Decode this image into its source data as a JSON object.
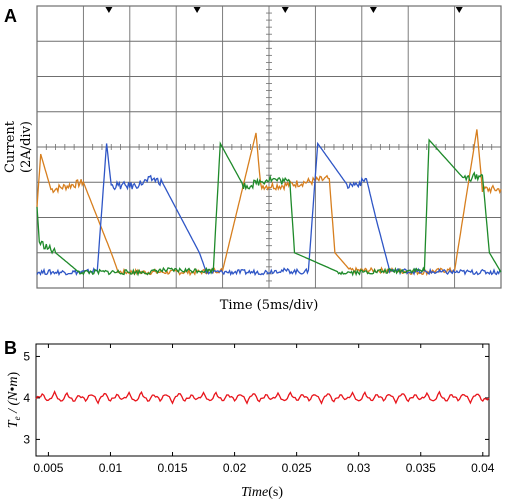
{
  "chart_data": [
    {
      "panel": "A",
      "type": "line",
      "xlabel": "Time (5ms/div)",
      "ylabel_line1": "Current",
      "ylabel_line2": "(2A/div)",
      "x_divisions": 10,
      "y_divisions": 8,
      "ylim_div": [
        -4,
        4
      ],
      "xlim_div": [
        0,
        10
      ],
      "colors": {
        "phase_a": "#d77f1f",
        "phase_b": "#2f56c6",
        "phase_c": "#1e8a2a",
        "grid": "#6f6f6f",
        "trigger": "#000000"
      },
      "series": [
        {
          "color_key": "phase_a",
          "x": [
            0.0,
            0.08,
            0.3,
            0.35,
            1.0,
            1.6,
            1.75,
            2.05,
            2.9,
            3.2,
            3.45,
            3.9,
            4.0,
            4.72,
            4.82,
            5.25,
            6.3,
            6.42,
            6.75,
            6.9,
            7.6,
            8.15,
            8.35,
            8.75,
            9.0,
            9.48,
            9.6,
            10.0
          ],
          "y": [
            -1.7,
            -0.2,
            -1.2,
            -1.2,
            -1.0,
            -3.0,
            -3.55,
            -3.55,
            -3.55,
            -3.55,
            -3.55,
            -3.5,
            -3.5,
            0.4,
            -1.1,
            -1.1,
            -0.9,
            -3.0,
            -3.5,
            -3.5,
            -3.5,
            -3.55,
            -3.55,
            -3.5,
            -3.5,
            0.5,
            -1.2,
            -1.2
          ]
        },
        {
          "color_key": "phase_b",
          "x": [
            0.0,
            0.5,
            1.0,
            1.05,
            1.25,
            1.3,
            1.5,
            1.6,
            2.1,
            2.5,
            2.7,
            3.5,
            3.65,
            4.6,
            4.9,
            5.2,
            5.78,
            5.85,
            6.05,
            6.7,
            7.0,
            7.1,
            7.3,
            7.6,
            8.5,
            9.0,
            9.5,
            10.0
          ],
          "y": [
            -3.55,
            -3.55,
            -3.55,
            -3.55,
            -3.5,
            -3.5,
            0.1,
            -1.1,
            -1.1,
            -0.9,
            -1.0,
            -3.0,
            -3.55,
            -3.55,
            -3.55,
            -3.5,
            -3.55,
            -3.5,
            0.1,
            -1.1,
            -1.0,
            -0.9,
            -2.0,
            -3.5,
            -3.55,
            -3.55,
            -3.55,
            -3.55
          ]
        },
        {
          "color_key": "phase_c",
          "x": [
            0.0,
            0.05,
            0.4,
            0.9,
            1.0,
            2.0,
            2.48,
            2.6,
            3.6,
            3.8,
            3.95,
            4.45,
            4.55,
            5.0,
            5.45,
            5.55,
            6.5,
            6.78,
            6.95,
            8.1,
            8.35,
            8.45,
            9.2,
            9.6,
            9.75,
            10.0
          ],
          "y": [
            -1.7,
            -2.7,
            -3.0,
            -3.55,
            -3.55,
            -3.55,
            -3.55,
            -3.5,
            -3.5,
            -3.5,
            0.1,
            -1.1,
            -1.1,
            -0.9,
            -1.0,
            -3.0,
            -3.55,
            -3.55,
            -3.55,
            -3.5,
            -3.5,
            0.2,
            -0.9,
            -0.8,
            -3.0,
            -3.55
          ]
        }
      ],
      "trigger_markers": [
        1.55,
        3.45,
        5.35,
        7.25,
        9.1
      ]
    },
    {
      "panel": "B",
      "type": "line",
      "ylabel": "T_e / (N•m)",
      "xlabel": "Time(s)",
      "xlim": [
        0.004,
        0.0405
      ],
      "ylim": [
        2.6,
        5.3
      ],
      "xticks": [
        "0.005",
        "0.01",
        "0.015",
        "0.02",
        "0.025",
        "0.03",
        "0.035",
        "0.04"
      ],
      "xtick_values": [
        0.005,
        0.01,
        0.015,
        0.02,
        0.025,
        0.03,
        0.035,
        0.04
      ],
      "yticks": [
        "3",
        "4",
        "5"
      ],
      "ytick_values": [
        3,
        4,
        5
      ],
      "line_color": "#e8141b",
      "series": {
        "x": [
          0.004,
          0.0045,
          0.005,
          0.0055,
          0.006,
          0.0065,
          0.007,
          0.0075,
          0.008,
          0.0085,
          0.009,
          0.0095,
          0.01,
          0.0105,
          0.011,
          0.0115,
          0.012,
          0.0125,
          0.013,
          0.0135,
          0.014,
          0.0145,
          0.015,
          0.0155,
          0.016,
          0.0165,
          0.017,
          0.0175,
          0.018,
          0.0185,
          0.019,
          0.0195,
          0.02,
          0.0205,
          0.021,
          0.0215,
          0.022,
          0.0225,
          0.023,
          0.0235,
          0.024,
          0.0245,
          0.025,
          0.0255,
          0.026,
          0.0265,
          0.027,
          0.0275,
          0.028,
          0.0285,
          0.029,
          0.0295,
          0.03,
          0.0305,
          0.031,
          0.0315,
          0.032,
          0.0325,
          0.033,
          0.0335,
          0.034,
          0.0345,
          0.035,
          0.0355,
          0.036,
          0.0365,
          0.037,
          0.0375,
          0.038,
          0.0385,
          0.039,
          0.0395,
          0.04,
          0.0405
        ],
        "y": [
          3.98,
          4.08,
          3.92,
          4.12,
          3.9,
          4.1,
          3.92,
          4.06,
          3.95,
          4.1,
          3.9,
          4.12,
          3.93,
          4.07,
          3.96,
          4.1,
          3.9,
          4.12,
          3.92,
          4.08,
          3.95,
          4.1,
          3.9,
          4.12,
          3.93,
          4.06,
          3.96,
          4.1,
          3.91,
          4.11,
          3.93,
          4.08,
          3.95,
          4.1,
          3.9,
          4.12,
          3.92,
          4.07,
          3.96,
          4.09,
          3.91,
          4.11,
          3.94,
          4.08,
          3.95,
          4.1,
          3.9,
          4.12,
          3.92,
          4.07,
          3.96,
          4.1,
          3.9,
          4.11,
          3.93,
          4.08,
          3.95,
          4.1,
          3.91,
          4.12,
          3.93,
          4.07,
          3.96,
          4.09,
          3.9,
          4.12,
          3.92,
          4.08,
          3.95,
          4.1,
          3.91,
          4.11,
          3.94,
          4.0
        ]
      }
    }
  ]
}
